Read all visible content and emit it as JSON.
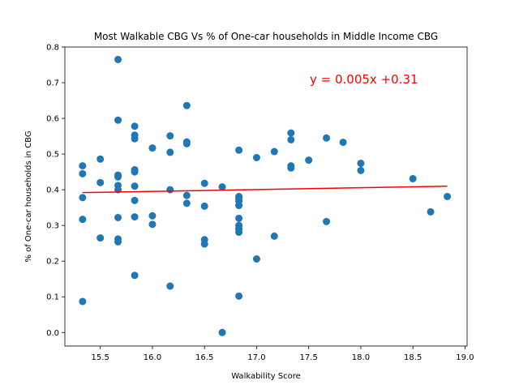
{
  "chart_data": {
    "type": "scatter",
    "title": "Most Walkable CBG Vs % of One-car households in Middle Income CBG",
    "xlabel": "Walkability Score",
    "ylabel": "% of One-car households in CBG",
    "xlim": [
      15.16,
      19.02
    ],
    "ylim": [
      -0.038,
      0.8
    ],
    "xticks": [
      "15.5",
      "16.0",
      "16.5",
      "17.0",
      "17.5",
      "18.0",
      "18.5",
      "19.0"
    ],
    "yticks": [
      "0.0",
      "0.1",
      "0.2",
      "0.3",
      "0.4",
      "0.5",
      "0.6",
      "0.7",
      "0.8"
    ],
    "grid": false,
    "annotation": "y = 0.005x +0.31",
    "colors": {
      "points": "#1f77b4",
      "trendline": "#ff0000",
      "annotation": "#ff0000"
    },
    "series": [
      {
        "type": "scatter",
        "points": [
          [
            15.33,
            0.467
          ],
          [
            15.33,
            0.445
          ],
          [
            15.33,
            0.378
          ],
          [
            15.33,
            0.317
          ],
          [
            15.33,
            0.087
          ],
          [
            15.5,
            0.486
          ],
          [
            15.5,
            0.42
          ],
          [
            15.5,
            0.265
          ],
          [
            15.67,
            0.765
          ],
          [
            15.67,
            0.595
          ],
          [
            15.67,
            0.441
          ],
          [
            15.67,
            0.436
          ],
          [
            15.67,
            0.412
          ],
          [
            15.67,
            0.4
          ],
          [
            15.67,
            0.322
          ],
          [
            15.67,
            0.262
          ],
          [
            15.67,
            0.254
          ],
          [
            15.83,
            0.578
          ],
          [
            15.83,
            0.553
          ],
          [
            15.83,
            0.543
          ],
          [
            15.83,
            0.456
          ],
          [
            15.83,
            0.45
          ],
          [
            15.83,
            0.41
          ],
          [
            15.83,
            0.37
          ],
          [
            15.83,
            0.324
          ],
          [
            15.83,
            0.16
          ],
          [
            16.0,
            0.517
          ],
          [
            16.0,
            0.327
          ],
          [
            16.0,
            0.303
          ],
          [
            16.17,
            0.551
          ],
          [
            16.17,
            0.505
          ],
          [
            16.17,
            0.4
          ],
          [
            16.17,
            0.13
          ],
          [
            16.33,
            0.636
          ],
          [
            16.33,
            0.534
          ],
          [
            16.33,
            0.529
          ],
          [
            16.33,
            0.384
          ],
          [
            16.33,
            0.362
          ],
          [
            16.5,
            0.418
          ],
          [
            16.5,
            0.354
          ],
          [
            16.5,
            0.26
          ],
          [
            16.5,
            0.248
          ],
          [
            16.67,
            0.408
          ],
          [
            16.67,
            0.0
          ],
          [
            16.83,
            0.511
          ],
          [
            16.83,
            0.381
          ],
          [
            16.83,
            0.375
          ],
          [
            16.83,
            0.368
          ],
          [
            16.83,
            0.356
          ],
          [
            16.83,
            0.32
          ],
          [
            16.83,
            0.3
          ],
          [
            16.83,
            0.29
          ],
          [
            16.83,
            0.281
          ],
          [
            16.83,
            0.102
          ],
          [
            17.0,
            0.49
          ],
          [
            17.0,
            0.206
          ],
          [
            17.17,
            0.507
          ],
          [
            17.17,
            0.27
          ],
          [
            17.33,
            0.559
          ],
          [
            17.33,
            0.54
          ],
          [
            17.33,
            0.467
          ],
          [
            17.33,
            0.461
          ],
          [
            17.5,
            0.483
          ],
          [
            17.67,
            0.545
          ],
          [
            17.67,
            0.311
          ],
          [
            17.83,
            0.533
          ],
          [
            18.0,
            0.474
          ],
          [
            18.0,
            0.454
          ],
          [
            18.5,
            0.431
          ],
          [
            18.67,
            0.338
          ],
          [
            18.83,
            0.381
          ]
        ]
      },
      {
        "type": "line",
        "points": [
          [
            15.33,
            0.392
          ],
          [
            18.83,
            0.41
          ]
        ]
      }
    ]
  }
}
